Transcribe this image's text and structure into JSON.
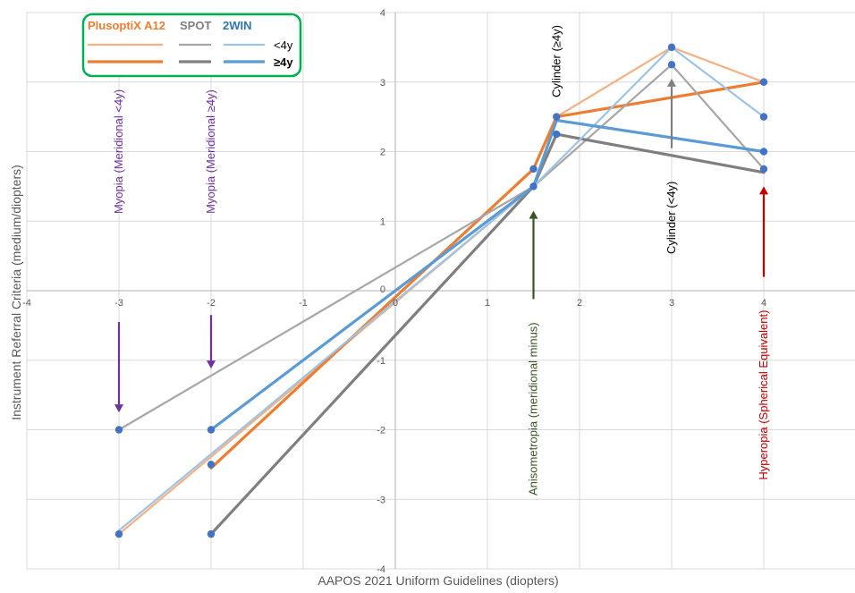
{
  "chart_data": {
    "type": "line",
    "xlabel": "AAPOS 2021 Uniform Guidelines (diopters)",
    "ylabel": "Instrument Referral Criteria (medium/diopters)",
    "xlim": [
      -4,
      5
    ],
    "ylim": [
      -4,
      4
    ],
    "x_ticks": [
      "-4",
      "-3",
      "-2",
      "-1",
      "0",
      "1",
      "2",
      "3",
      "4"
    ],
    "y_ticks": [
      "4",
      "3",
      "2",
      "1",
      "0",
      "-1",
      "-2",
      "-3",
      "-4"
    ],
    "grid": true,
    "legend": {
      "placement": "top-left",
      "headers": [
        {
          "text": "PlusoptiX A12",
          "color": "#ED7D31"
        },
        {
          "text": "SPOT",
          "color": "#7F7F7F"
        },
        {
          "text": "2WIN",
          "color": "#2E75B6"
        }
      ],
      "row_labels": [
        "<4y",
        "≥4y"
      ]
    },
    "series": [
      {
        "instrument": "PlusoptiX A12",
        "age": "<4y",
        "color": "#F4B183",
        "width": 2.2,
        "points": [
          [
            -3,
            -3.5
          ],
          [
            1.5,
            1.5
          ],
          [
            1.75,
            2.5
          ],
          [
            3,
            3.5
          ],
          [
            4,
            3.0
          ]
        ]
      },
      {
        "instrument": "PlusoptiX A12",
        "age": "≥4y",
        "color": "#ED7D31",
        "width": 3.2,
        "points": [
          [
            -2,
            -2.55
          ],
          [
            1.5,
            1.75
          ],
          [
            1.75,
            2.5
          ],
          [
            4,
            3.0
          ]
        ]
      },
      {
        "instrument": "SPOT",
        "age": "<4y",
        "color": "#A6A6A6",
        "width": 2.2,
        "points": [
          [
            -3,
            -2.0
          ],
          [
            1.5,
            1.5
          ],
          [
            3,
            3.25
          ],
          [
            4,
            1.75
          ]
        ]
      },
      {
        "instrument": "SPOT",
        "age": "≥4y",
        "color": "#7F7F7F",
        "width": 3.2,
        "points": [
          [
            -2,
            -3.5
          ],
          [
            1.5,
            1.5
          ],
          [
            1.75,
            2.25
          ],
          [
            4,
            1.7
          ]
        ]
      },
      {
        "instrument": "2WIN",
        "age": "<4y",
        "color": "#9DC3E6",
        "width": 2.2,
        "points": [
          [
            -3,
            -3.45
          ],
          [
            1.5,
            1.5
          ],
          [
            3,
            3.5
          ],
          [
            4,
            2.5
          ]
        ]
      },
      {
        "instrument": "2WIN",
        "age": "≥4y",
        "color": "#5B9BD5",
        "width": 3.2,
        "points": [
          [
            -2,
            -2.0
          ],
          [
            1.5,
            1.5
          ],
          [
            1.75,
            2.45
          ],
          [
            4,
            2.0
          ]
        ]
      }
    ],
    "markers": {
      "color": "#4472C4",
      "points": [
        [
          -3,
          -2.0
        ],
        [
          -3,
          -3.5
        ],
        [
          -2,
          -2.0
        ],
        [
          -2,
          -2.5
        ],
        [
          -2,
          -3.5
        ],
        [
          1.5,
          1.75
        ],
        [
          1.5,
          1.5
        ],
        [
          1.75,
          2.5
        ],
        [
          1.75,
          2.25
        ],
        [
          3,
          3.5
        ],
        [
          3,
          3.25
        ],
        [
          4,
          3.0
        ],
        [
          4,
          2.5
        ],
        [
          4,
          2.0
        ],
        [
          4,
          1.75
        ]
      ]
    },
    "annotations": [
      {
        "text": "Myopia (Meridional <4y)",
        "color": "#7030A0",
        "x": -3.0,
        "y": 2.0,
        "rotate": -90
      },
      {
        "text": "Myopia (Meridional ≥4y)",
        "color": "#7030A0",
        "x": -2.0,
        "y": 2.0,
        "rotate": -90
      },
      {
        "text": "Anisometropia (meridional minus)",
        "color": "#375623",
        "x": 1.5,
        "y": -1.7,
        "rotate": -90
      },
      {
        "text": "Hyperopia (Spherical Equivalent)",
        "color": "#C00000",
        "x": 4.0,
        "y": -1.5,
        "rotate": -90
      },
      {
        "text": "Cylinder (≥4y)",
        "color": "#000000",
        "x": 1.75,
        "y": 3.3,
        "rotate": -90
      },
      {
        "text": "Cylinder (<4y)",
        "color": "#000000",
        "x": 3.0,
        "y": 1.05,
        "rotate": -90
      }
    ],
    "arrows": [
      {
        "color": "#7030A0",
        "x": -3.0,
        "y_from": -0.45,
        "y_to": -1.75
      },
      {
        "color": "#7030A0",
        "x": -2.0,
        "y_from": -0.35,
        "y_to": -1.12
      },
      {
        "color": "#375623",
        "x": 1.5,
        "y_from": -0.12,
        "y_to": 1.15
      },
      {
        "color": "#C00000",
        "x": 4.0,
        "y_from": 0.2,
        "y_to": 1.5
      },
      {
        "color": "#7F7F7F",
        "x": 3.0,
        "y_from": 2.05,
        "y_to": 3.05
      }
    ]
  }
}
